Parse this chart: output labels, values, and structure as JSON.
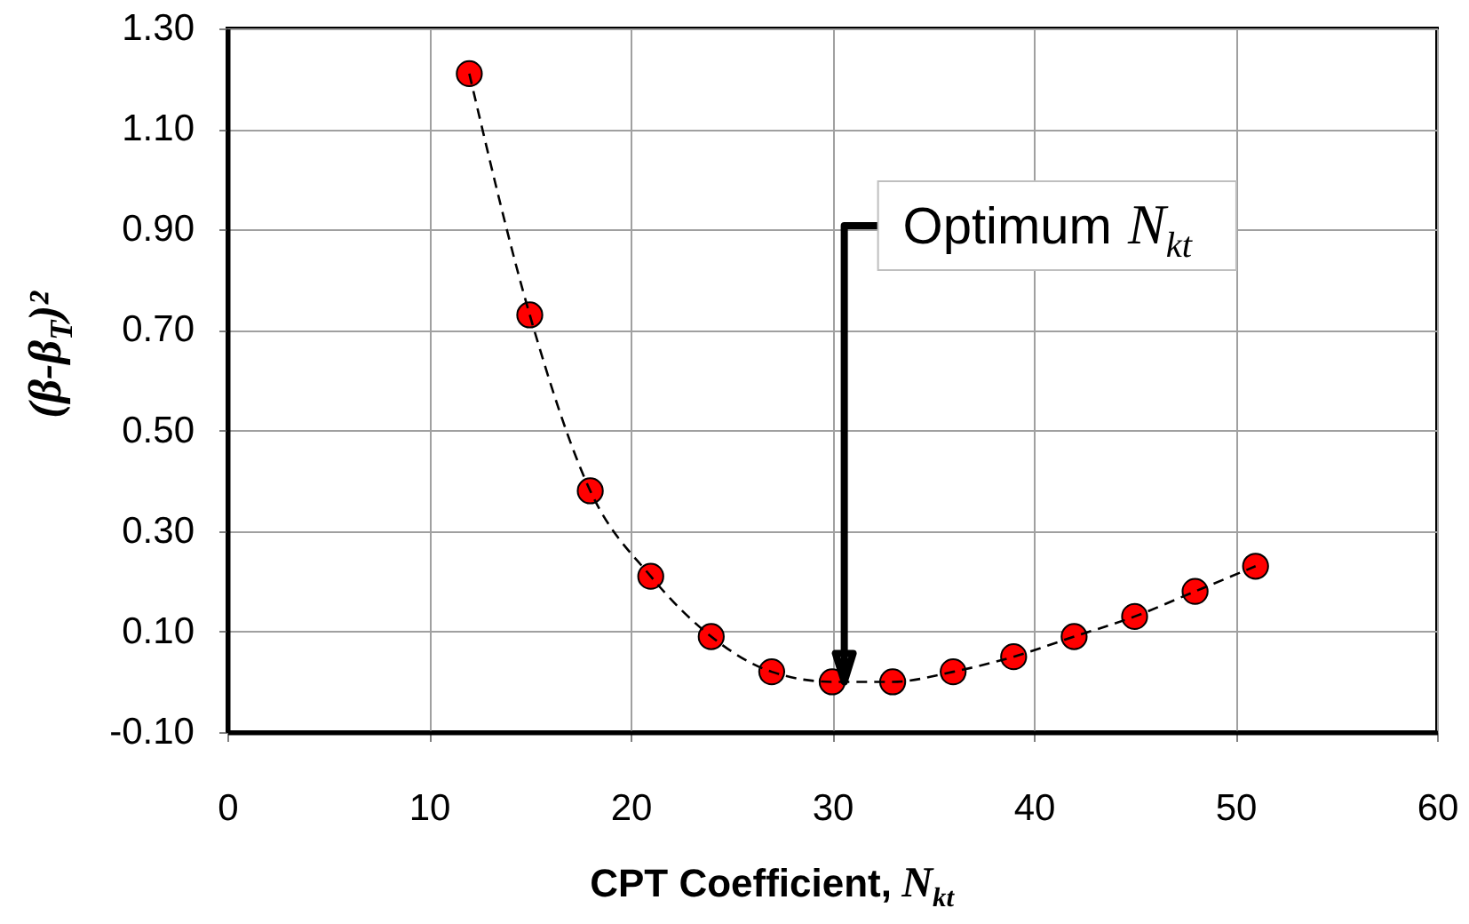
{
  "chart_data": {
    "type": "scatter",
    "xlabel": "CPT Coefficient, N$_{kt}$",
    "ylabel": "(β-β$_{T}$)²",
    "x": [
      12,
      15,
      18,
      21,
      24,
      27,
      30,
      33,
      36,
      39,
      42,
      45,
      48,
      51
    ],
    "series": [
      {
        "color": "#ff0000",
        "marker": "circle",
        "values": [
          1.21,
          0.73,
          0.38,
          0.21,
          0.09,
          0.02,
          0.0,
          0.0,
          0.02,
          0.05,
          0.09,
          0.13,
          0.18,
          0.23
        ]
      },
      {
        "type": "line",
        "color": "#000000",
        "marker": "none",
        "line_style": "dashed",
        "values": [
          1.21,
          0.73,
          0.38,
          0.21,
          0.09,
          0.02,
          0.0,
          0.0,
          0.02,
          0.05,
          0.09,
          0.13,
          0.18,
          0.23
        ]
      }
    ],
    "xlim": [
      0,
      60
    ],
    "xticks": [
      0,
      10,
      20,
      30,
      40,
      50,
      60
    ],
    "ylim": [
      -0.1,
      1.3
    ],
    "yticks": [
      {
        "value": -0.1,
        "label": "-0.10"
      },
      {
        "value": 0.1,
        "label": "0.10"
      },
      {
        "value": 0.3,
        "label": "0.30"
      },
      {
        "value": 0.5,
        "label": "0.50"
      },
      {
        "value": 0.7,
        "label": "0.70"
      },
      {
        "value": 0.9,
        "label": "0.90"
      },
      {
        "value": 1.1,
        "label": "1.10"
      },
      {
        "value": 1.3,
        "label": "1.30"
      }
    ],
    "grid": true,
    "annotations": [
      {
        "text": "Optimum N$_{kt}$",
        "x": 30.6,
        "y": 0.0
      }
    ]
  }
}
